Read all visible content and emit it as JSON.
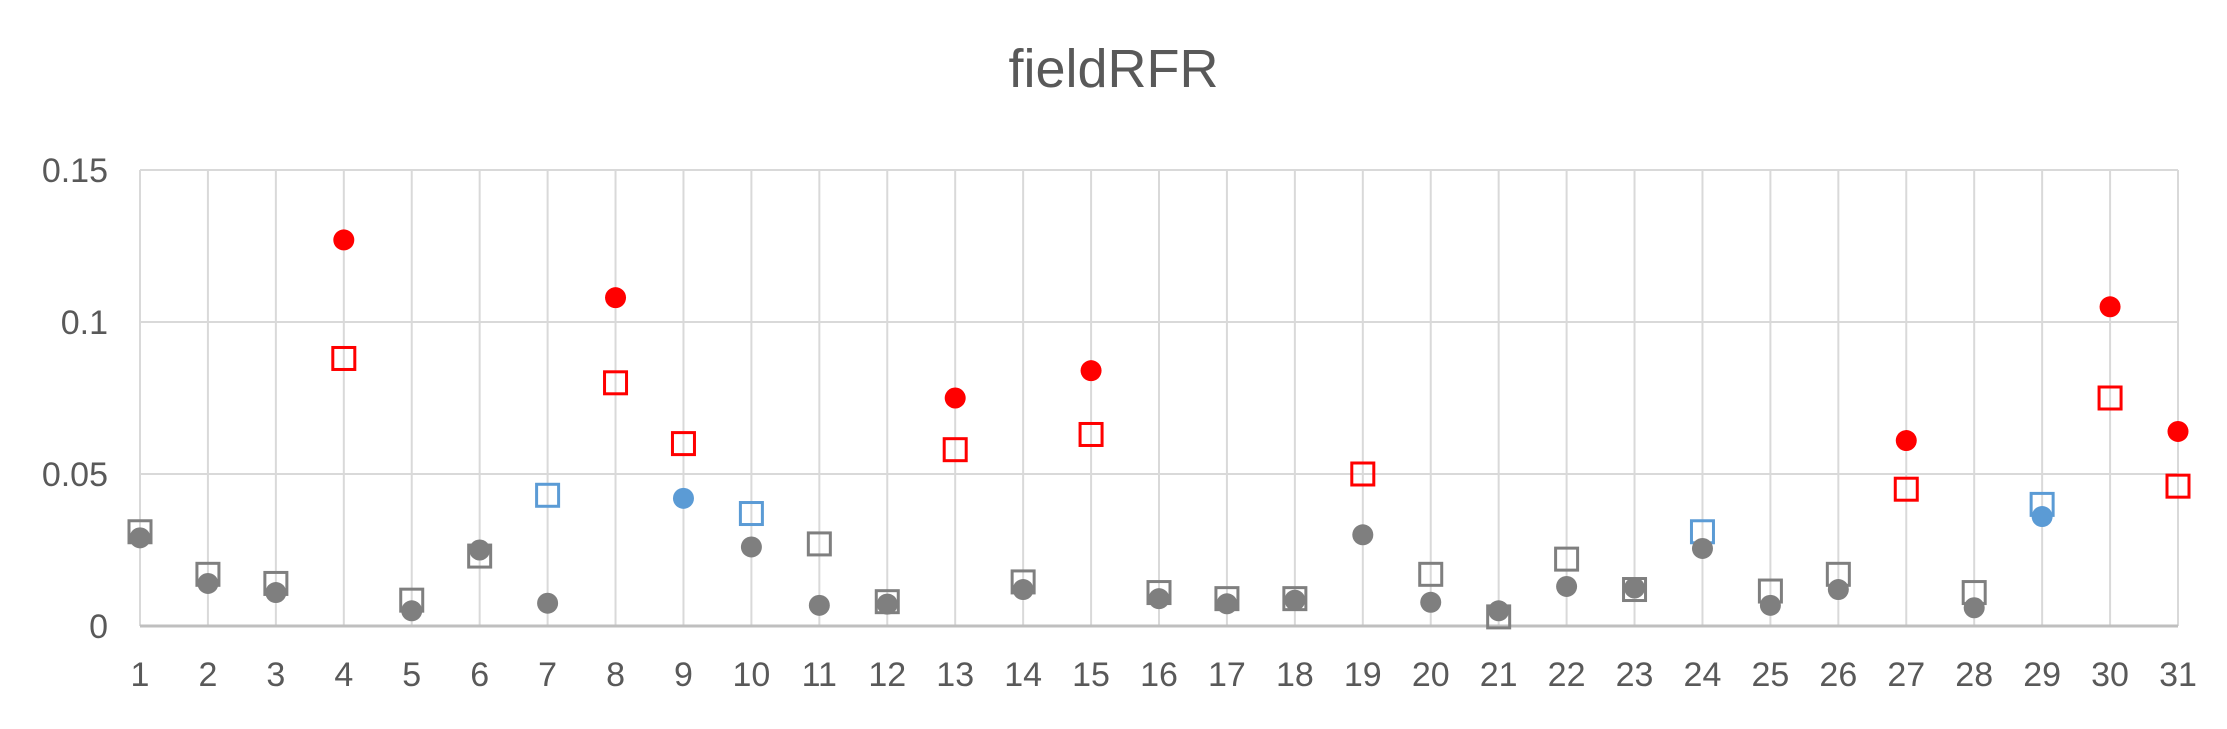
{
  "chart_data": {
    "type": "scatter",
    "title": "fieldRFR",
    "xlabel": "",
    "ylabel": "",
    "categories": [
      "1",
      "2",
      "3",
      "4",
      "5",
      "6",
      "7",
      "8",
      "9",
      "10",
      "11",
      "12",
      "13",
      "14",
      "15",
      "16",
      "17",
      "18",
      "19",
      "20",
      "21",
      "22",
      "23",
      "24",
      "25",
      "26",
      "27",
      "28",
      "29",
      "30",
      "31"
    ],
    "ylim": [
      0,
      0.15
    ],
    "yticks": [
      "0",
      "0.05",
      "0.1",
      "0.15"
    ],
    "grid": true,
    "legend": "none",
    "colors": {
      "gray": "#7f7f7f",
      "red": "#ff0000",
      "blue": "#5b9bd5"
    },
    "series": [
      {
        "marker": "filled-circle",
        "values": [
          0.029,
          0.014,
          0.011,
          0.127,
          0.005,
          0.025,
          0.0075,
          0.108,
          0.042,
          0.026,
          0.0068,
          0.0072,
          0.075,
          0.012,
          0.084,
          0.009,
          0.0073,
          0.0085,
          0.03,
          0.0078,
          0.005,
          0.013,
          0.0125,
          0.0255,
          0.0068,
          0.012,
          0.061,
          0.006,
          0.036,
          0.105,
          0.064
        ],
        "point_colors": [
          "gray",
          "gray",
          "gray",
          "red",
          "gray",
          "gray",
          "gray",
          "red",
          "blue",
          "gray",
          "gray",
          "gray",
          "red",
          "gray",
          "red",
          "gray",
          "gray",
          "gray",
          "gray",
          "gray",
          "gray",
          "gray",
          "gray",
          "gray",
          "gray",
          "gray",
          "red",
          "gray",
          "blue",
          "red",
          "red"
        ]
      },
      {
        "marker": "open-square",
        "values": [
          0.031,
          0.017,
          0.014,
          0.088,
          0.0085,
          0.023,
          0.043,
          0.08,
          0.06,
          0.037,
          0.027,
          0.008,
          0.058,
          0.0145,
          0.063,
          0.011,
          0.009,
          0.009,
          0.05,
          0.017,
          0.003,
          0.022,
          0.012,
          0.031,
          0.0115,
          0.017,
          0.045,
          0.011,
          0.04,
          0.075,
          0.046
        ],
        "point_colors": [
          "gray",
          "gray",
          "gray",
          "red",
          "gray",
          "gray",
          "blue",
          "red",
          "red",
          "blue",
          "gray",
          "gray",
          "red",
          "gray",
          "red",
          "gray",
          "gray",
          "gray",
          "red",
          "gray",
          "gray",
          "gray",
          "gray",
          "blue",
          "gray",
          "gray",
          "red",
          "gray",
          "blue",
          "red",
          "red"
        ]
      }
    ]
  }
}
